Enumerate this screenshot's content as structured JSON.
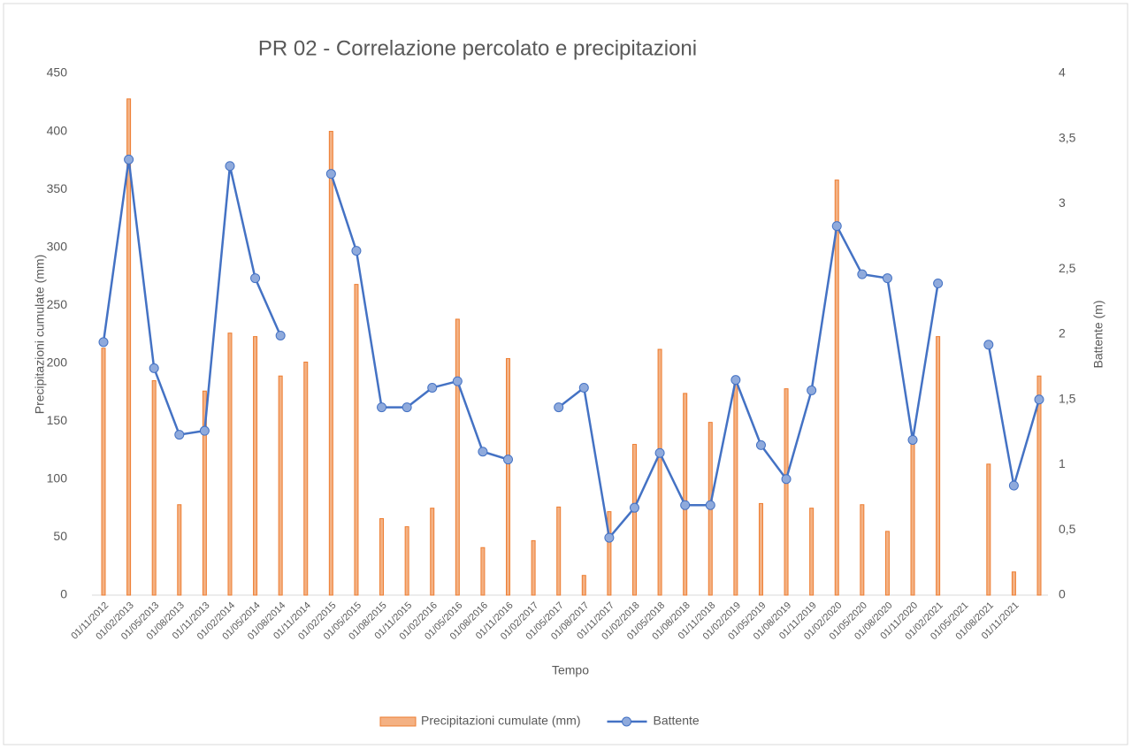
{
  "chart_data": {
    "type": "bar_line",
    "title": "PR 02 - Correlazione  percolato  e  precipitazioni",
    "x_label": "Tempo",
    "y_label": "Precipitazioni cumulate (mm)",
    "y2_label": "Battente (m)",
    "categories": [
      "01/11/2012",
      "01/02/2013",
      "01/05/2013",
      "01/08/2013",
      "01/11/2013",
      "01/02/2014",
      "01/05/2014",
      "01/08/2014",
      "01/11/2014",
      "01/02/2015",
      "01/05/2015",
      "01/08/2015",
      "01/11/2015",
      "01/02/2016",
      "01/05/2016",
      "01/08/2016",
      "01/11/2016",
      "01/02/2017",
      "01/05/2017",
      "01/08/2017",
      "01/11/2017",
      "01/02/2018",
      "01/05/2018",
      "01/08/2018",
      "01/11/2018",
      "01/02/2019",
      "01/05/2019",
      "01/08/2019",
      "01/11/2019",
      "01/02/2020",
      "01/05/2020",
      "01/08/2020",
      "01/11/2020",
      "01/02/2021",
      "01/05/2021",
      "01/08/2021",
      "01/11/2021",
      null
    ],
    "series": [
      {
        "name": "Precipitazioni cumulate (mm)",
        "type": "bar",
        "color": "#ed7d31",
        "fill": "#f4b183",
        "values": [
          213,
          428,
          185,
          78,
          176,
          226,
          223,
          189,
          201,
          400,
          268,
          66,
          59,
          75,
          238,
          41,
          204,
          47,
          76,
          17,
          72,
          130,
          212,
          174,
          149,
          182,
          79,
          178,
          75,
          358,
          78,
          55,
          135,
          223,
          null,
          113,
          20,
          189
        ]
      },
      {
        "name": "Battente",
        "type": "line",
        "axis": "y2",
        "color": "#4472c4",
        "marker_fill": "#8faadc",
        "values": [
          1.94,
          3.34,
          1.74,
          1.23,
          1.26,
          3.29,
          2.43,
          1.99,
          null,
          3.23,
          2.64,
          1.44,
          1.44,
          1.59,
          1.64,
          1.1,
          1.04,
          null,
          1.44,
          1.59,
          0.44,
          0.67,
          1.09,
          0.69,
          0.69,
          1.65,
          1.15,
          0.89,
          1.57,
          2.83,
          2.46,
          2.43,
          1.19,
          2.39,
          null,
          1.92,
          0.84,
          1.5
        ]
      }
    ],
    "ylim": [
      0,
      450
    ],
    "yticks": [
      0,
      50,
      100,
      150,
      200,
      250,
      300,
      350,
      400,
      450
    ],
    "y2lim": [
      0,
      4
    ],
    "y2ticks": [
      0,
      {
        "value": 0.5,
        "label": "0,5"
      },
      1,
      {
        "value": 1.5,
        "label": "1,5"
      },
      2,
      {
        "value": 2.5,
        "label": "2,5"
      },
      3,
      {
        "value": 3.5,
        "label": "3,5"
      },
      4
    ],
    "legend": "bottom"
  }
}
